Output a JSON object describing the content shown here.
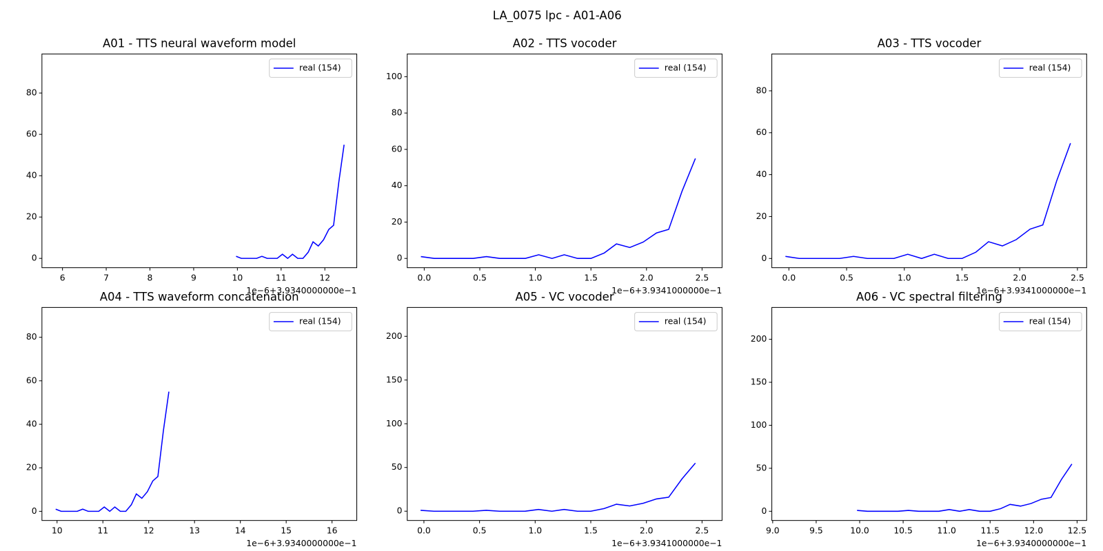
{
  "title": "LA_0075 lpc - A01-A06",
  "chart_data": [
    {
      "type": "line",
      "title": "A01 - TTS neural waveform model",
      "x_offset_label": "1e−6+3.9340000000e−1",
      "x": [
        9.97,
        10.09,
        10.21,
        10.32,
        10.44,
        10.56,
        10.68,
        10.79,
        10.91,
        11.03,
        11.15,
        11.26,
        11.38,
        11.5,
        11.62,
        11.73,
        11.85,
        11.97,
        12.09,
        12.2,
        12.32,
        12.44
      ],
      "series": [
        {
          "name": "real (154)",
          "color": "#0000ff",
          "values": [
            1,
            0,
            0,
            0,
            0,
            1,
            0,
            0,
            0,
            2,
            0,
            2,
            0,
            0,
            3,
            8,
            6,
            9,
            14,
            16,
            37,
            55
          ]
        }
      ],
      "xlim": [
        5.53,
        12.73
      ],
      "ylim": [
        -4.5,
        98.9
      ],
      "xticks": [
        6,
        7,
        8,
        9,
        10,
        11,
        12
      ],
      "yticks": [
        0,
        20,
        40,
        60,
        80
      ],
      "legend": "upper right"
    },
    {
      "type": "line",
      "title": "A02 - TTS vocoder",
      "x_offset_label": "1e−6+3.9341000000e−1",
      "x": [
        -0.03,
        0.09,
        0.21,
        0.32,
        0.44,
        0.56,
        0.68,
        0.79,
        0.91,
        1.03,
        1.15,
        1.26,
        1.38,
        1.5,
        1.62,
        1.73,
        1.85,
        1.97,
        2.09,
        2.2,
        2.32,
        2.44
      ],
      "series": [
        {
          "name": "real (154)",
          "color": "#0000ff",
          "values": [
            1,
            0,
            0,
            0,
            0,
            1,
            0,
            0,
            0,
            2,
            0,
            2,
            0,
            0,
            3,
            8,
            6,
            9,
            14,
            16,
            37,
            55
          ]
        }
      ],
      "xlim": [
        -0.153,
        2.68
      ],
      "ylim": [
        -5.1,
        112.5
      ],
      "xticks": [
        {
          "value": 0,
          "label": "0.0"
        },
        0.5,
        {
          "value": 1,
          "label": "1.0"
        },
        1.5,
        {
          "value": 2,
          "label": "2.0"
        },
        2.5
      ],
      "yticks": [
        0,
        20,
        40,
        60,
        80,
        100
      ],
      "legend": "upper right"
    },
    {
      "type": "line",
      "title": "A03 - TTS vocoder",
      "x_offset_label": "1e−6+3.9341000000e−1",
      "x": [
        -0.03,
        0.09,
        0.21,
        0.32,
        0.44,
        0.56,
        0.68,
        0.79,
        0.91,
        1.03,
        1.15,
        1.26,
        1.38,
        1.5,
        1.62,
        1.73,
        1.85,
        1.97,
        2.09,
        2.2,
        2.32,
        2.44
      ],
      "series": [
        {
          "name": "real (154)",
          "color": "#0000ff",
          "values": [
            1,
            0,
            0,
            0,
            0,
            1,
            0,
            0,
            0,
            2,
            0,
            2,
            0,
            0,
            3,
            8,
            6,
            9,
            14,
            16,
            37,
            55
          ]
        }
      ],
      "xlim": [
        -0.148,
        2.58
      ],
      "ylim": [
        -4.4,
        97.6
      ],
      "xticks": [
        {
          "value": 0,
          "label": "0.0"
        },
        0.5,
        {
          "value": 1,
          "label": "1.0"
        },
        1.5,
        {
          "value": 2,
          "label": "2.0"
        },
        2.5
      ],
      "yticks": [
        0,
        20,
        40,
        60,
        80
      ],
      "legend": "upper right"
    },
    {
      "type": "line",
      "title": "A04 - TTS waveform concatenation",
      "x_offset_label": "1e−6+3.9340000000e−1",
      "x": [
        9.97,
        10.09,
        10.21,
        10.32,
        10.44,
        10.56,
        10.68,
        10.79,
        10.91,
        11.03,
        11.15,
        11.26,
        11.38,
        11.5,
        11.62,
        11.73,
        11.85,
        11.97,
        12.09,
        12.2,
        12.32,
        12.44
      ],
      "series": [
        {
          "name": "real (154)",
          "color": "#0000ff",
          "values": [
            1,
            0,
            0,
            0,
            0,
            1,
            0,
            0,
            0,
            2,
            0,
            2,
            0,
            0,
            3,
            8,
            6,
            9,
            14,
            16,
            37,
            55
          ]
        }
      ],
      "xlim": [
        9.67,
        16.54
      ],
      "ylim": [
        -4.2,
        93.7
      ],
      "xticks": [
        10,
        11,
        12,
        13,
        14,
        15,
        16
      ],
      "yticks": [
        0,
        20,
        40,
        60,
        80
      ],
      "legend": "upper right"
    },
    {
      "type": "line",
      "title": "A05 - VC vocoder",
      "x_offset_label": "1e−6+3.9341000000e−1",
      "x": [
        -0.03,
        0.09,
        0.21,
        0.32,
        0.44,
        0.56,
        0.68,
        0.79,
        0.91,
        1.03,
        1.15,
        1.26,
        1.38,
        1.5,
        1.62,
        1.73,
        1.85,
        1.97,
        2.09,
        2.2,
        2.32,
        2.44
      ],
      "series": [
        {
          "name": "real (154)",
          "color": "#0000ff",
          "values": [
            1,
            0,
            0,
            0,
            0,
            1,
            0,
            0,
            0,
            2,
            0,
            2,
            0,
            0,
            3,
            8,
            6,
            9,
            14,
            16,
            37,
            55
          ]
        }
      ],
      "xlim": [
        -0.15,
        2.68
      ],
      "ylim": [
        -10.6,
        233
      ],
      "xticks": [
        {
          "value": 0,
          "label": "0.0"
        },
        0.5,
        {
          "value": 1,
          "label": "1.0"
        },
        1.5,
        {
          "value": 2,
          "label": "2.0"
        },
        2.5
      ],
      "yticks": [
        0,
        50,
        100,
        150,
        200
      ],
      "legend": "upper right"
    },
    {
      "type": "line",
      "title": "A06 - VC spectral filtering",
      "x_offset_label": "1e−6+3.9340000000e−1",
      "x": [
        9.97,
        10.09,
        10.21,
        10.32,
        10.44,
        10.56,
        10.68,
        10.79,
        10.91,
        11.03,
        11.15,
        11.26,
        11.38,
        11.5,
        11.62,
        11.73,
        11.85,
        11.97,
        12.09,
        12.2,
        12.32,
        12.44
      ],
      "series": [
        {
          "name": "real (154)",
          "color": "#0000ff",
          "values": [
            1,
            0,
            0,
            0,
            0,
            1,
            0,
            0,
            0,
            2,
            0,
            2,
            0,
            0,
            3,
            8,
            6,
            9,
            14,
            16,
            37,
            55
          ]
        }
      ],
      "xlim": [
        8.99,
        12.61
      ],
      "ylim": [
        -10.7,
        237
      ],
      "xticks": [
        {
          "value": 9,
          "label": "9.0"
        },
        9.5,
        {
          "value": 10,
          "label": "10.0"
        },
        10.5,
        {
          "value": 11,
          "label": "11.0"
        },
        11.5,
        {
          "value": 12,
          "label": "12.0"
        },
        12.5
      ],
      "yticks": [
        0,
        50,
        100,
        150,
        200
      ],
      "legend": "upper right"
    }
  ]
}
